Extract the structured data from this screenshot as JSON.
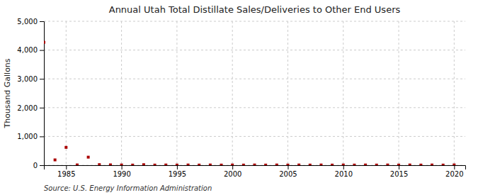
{
  "chart_data": {
    "type": "scatter",
    "title": "Annual Utah Total Distillate Sales/Deliveries to Other End Users",
    "ylabel": "Thousand Gallons",
    "source": "Source: U.S. Energy Information Administration",
    "x": [
      1983,
      1984,
      1985,
      1986,
      1987,
      1988,
      1989,
      1990,
      1991,
      1992,
      1993,
      1994,
      1995,
      1996,
      1997,
      1998,
      1999,
      2000,
      2001,
      2002,
      2003,
      2004,
      2005,
      2006,
      2007,
      2008,
      2009,
      2010,
      2011,
      2012,
      2013,
      2014,
      2015,
      2016,
      2017,
      2018,
      2019,
      2020
    ],
    "values": [
      4270,
      185,
      620,
      10,
      280,
      20,
      12,
      8,
      5,
      18,
      5,
      8,
      5,
      8,
      5,
      8,
      5,
      8,
      5,
      8,
      5,
      8,
      5,
      8,
      5,
      8,
      5,
      8,
      5,
      8,
      5,
      8,
      5,
      8,
      5,
      8,
      5,
      10
    ],
    "color": "#aa0000",
    "marker": "square",
    "xlim": [
      1983,
      2021
    ],
    "ylim": [
      0,
      5000
    ],
    "xticks": [
      1985,
      1990,
      1995,
      2000,
      2005,
      2010,
      2015,
      2020
    ],
    "yticks": [
      0,
      {
        "value": 1000,
        "label": "1,000"
      },
      {
        "value": 2000,
        "label": "2,000"
      },
      {
        "value": 3000,
        "label": "3,000"
      },
      {
        "value": 4000,
        "label": "4,000"
      },
      {
        "value": 5000,
        "label": "5,000"
      }
    ],
    "grid": true
  }
}
